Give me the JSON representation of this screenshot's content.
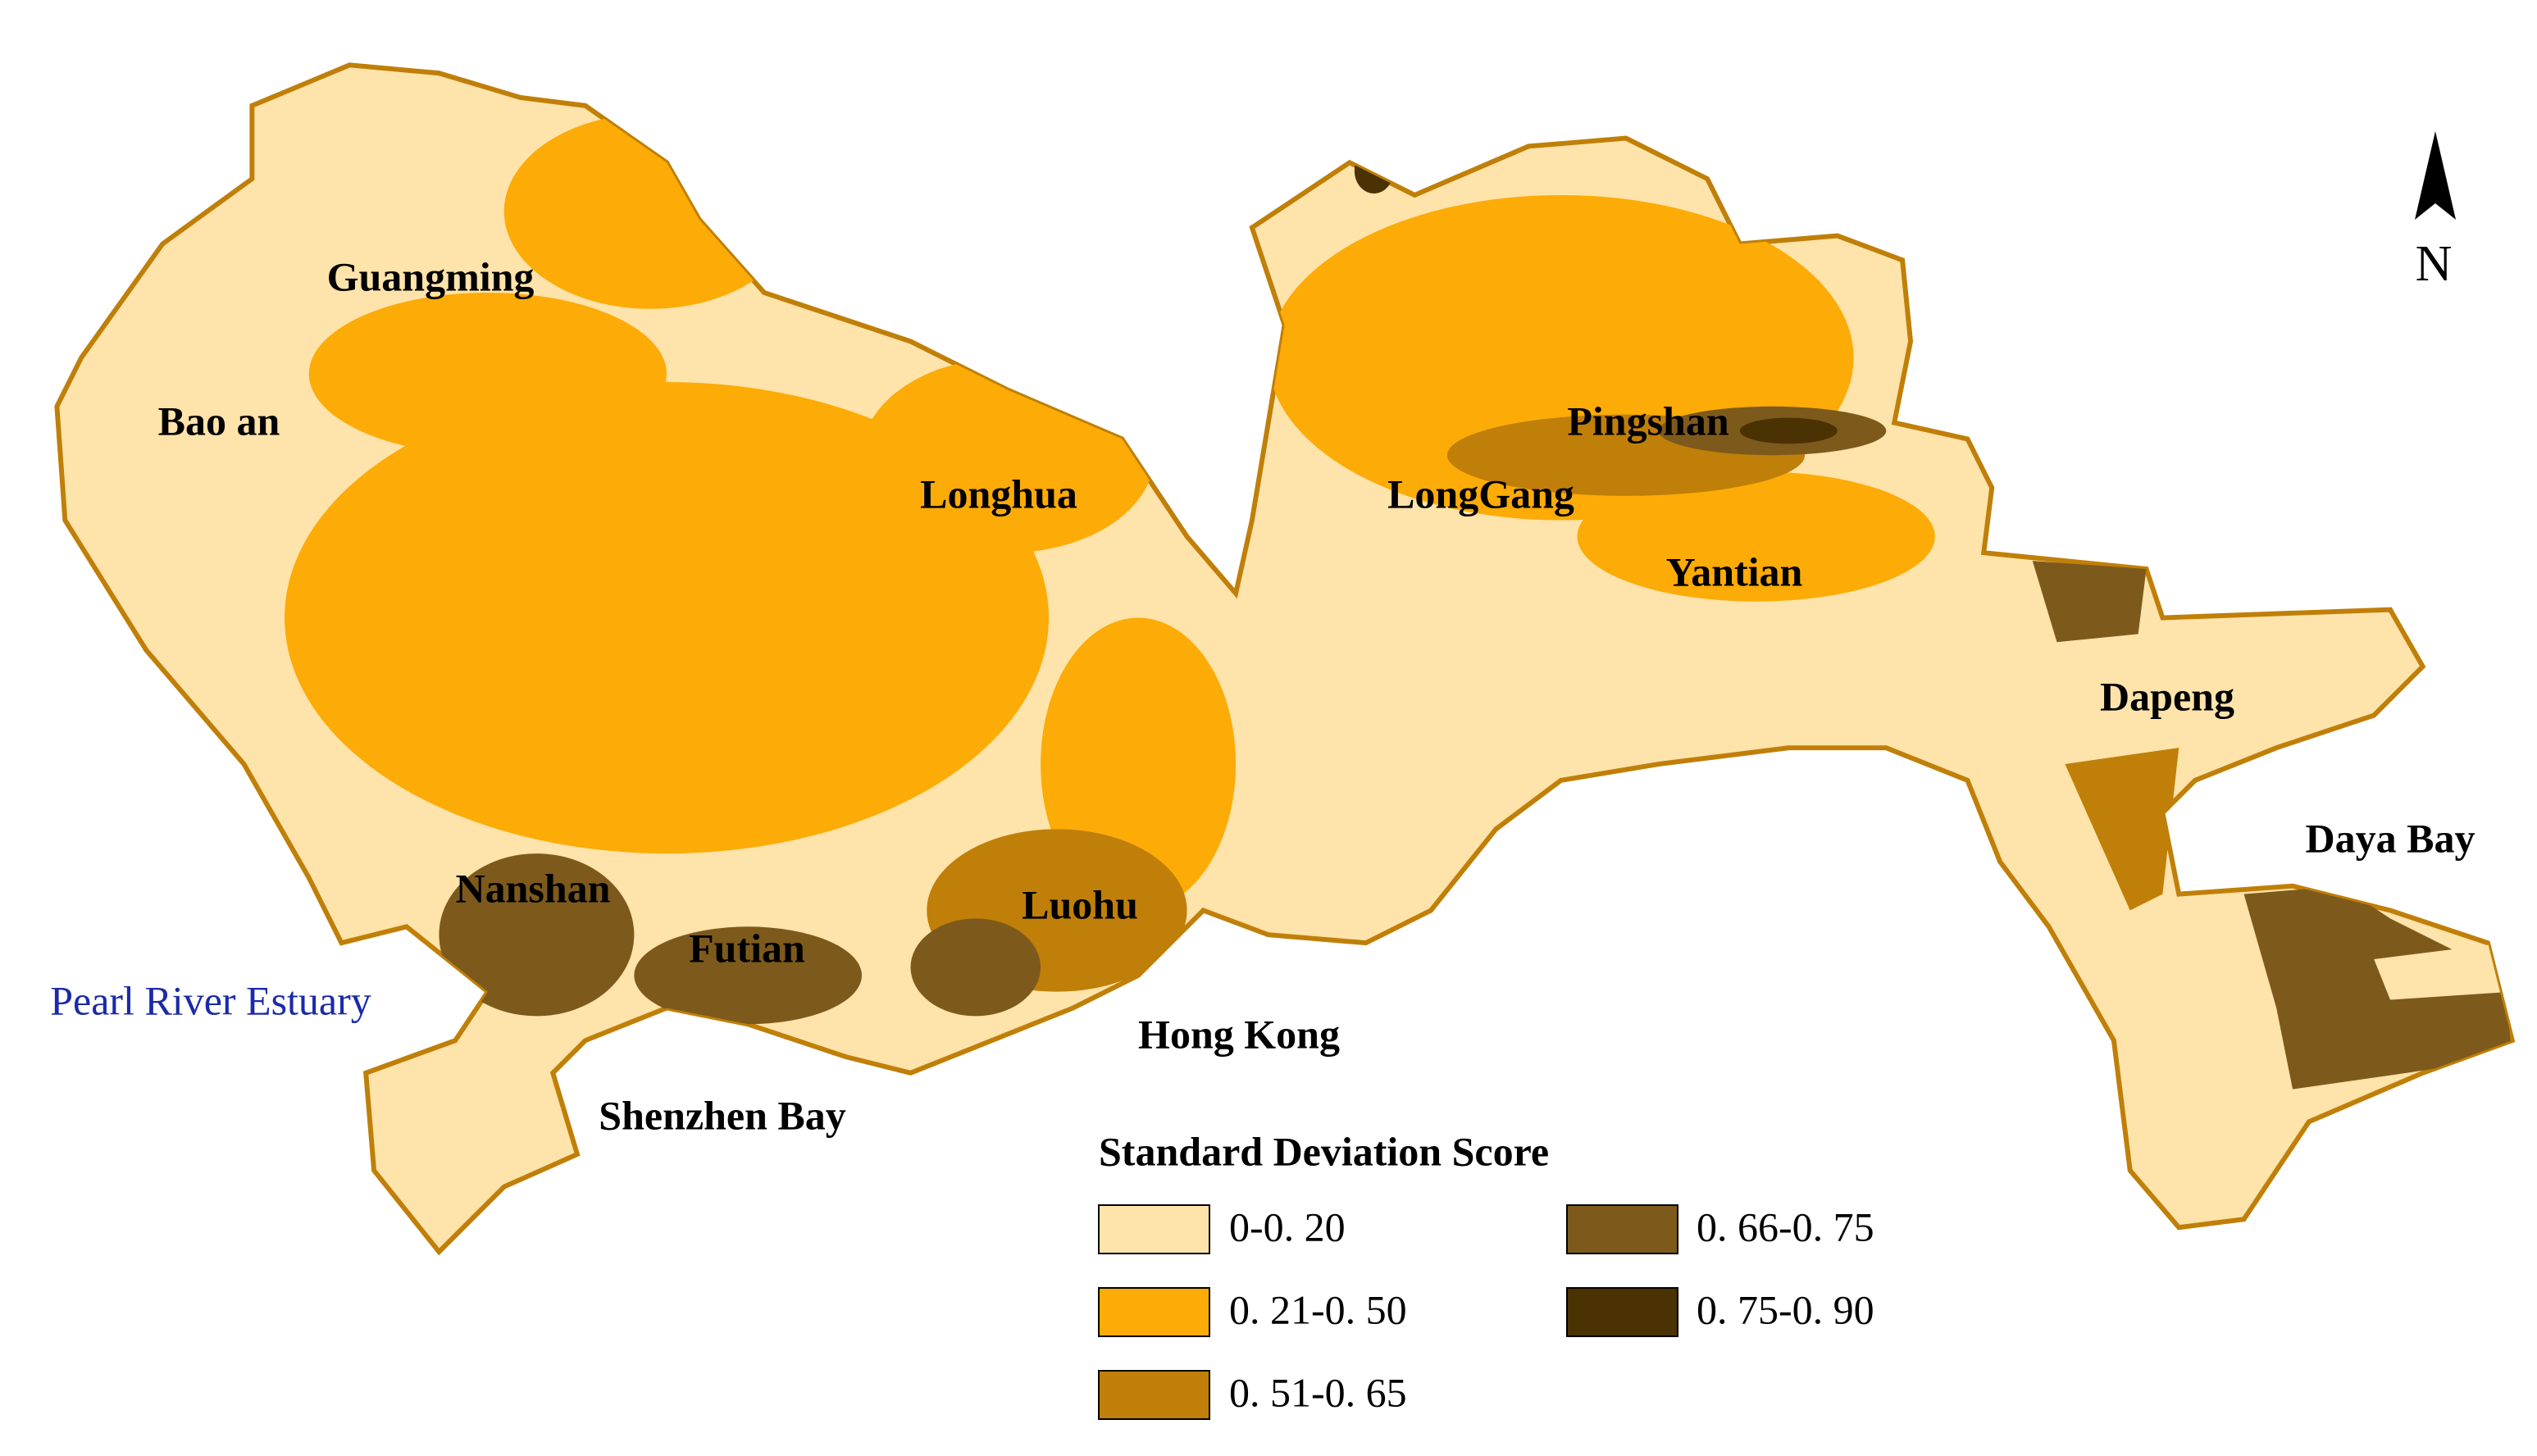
{
  "map": {
    "north": "N",
    "districts": [
      "Guangming",
      "Bao an",
      "Longhua",
      "LongGang",
      "Pingshan",
      "Yantian",
      "Dapeng",
      "Nanshan",
      "Futian",
      "Luohu"
    ],
    "places": [
      "Daya Bay",
      "Hong Kong",
      "Shenzhen Bay",
      "Pearl River Estuary"
    ],
    "legend": {
      "title": "Standard Deviation  Score",
      "items": [
        {
          "label": "0-0. 20",
          "color": "#fee3aa"
        },
        {
          "label": "0. 21-0. 50",
          "color": "#fdab06"
        },
        {
          "label": "0. 51-0. 65",
          "color": "#c07f08"
        },
        {
          "label": "0. 66-0. 75",
          "color": "#7d5a1c"
        },
        {
          "label": "0. 75-0. 90",
          "color": "#4a3203"
        }
      ]
    }
  }
}
